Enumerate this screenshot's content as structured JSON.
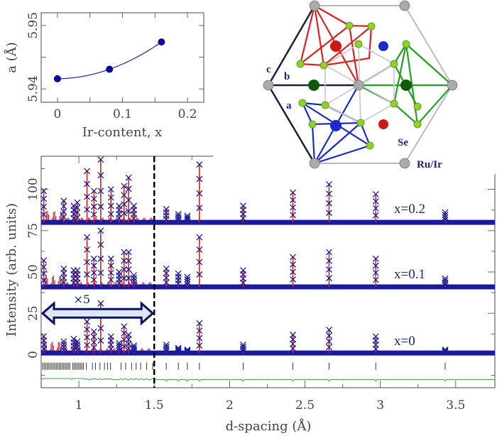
{
  "colors": {
    "observed": "#1a1a9e",
    "calculated": "#d32020",
    "difference": "#3aa83a",
    "reflections": "#333333",
    "inset_points": "#0a0a9a",
    "axes": "#666666"
  },
  "chart_data": [
    {
      "type": "scatter",
      "xlabel": "Ir-content, x",
      "ylabel": "a (Å)",
      "xlim": [
        -0.025,
        0.225
      ],
      "ylim": [
        5.9379,
        5.952
      ],
      "xticks": [
        "0",
        "0.1",
        "0.2"
      ],
      "xtick_values": [
        0,
        0.1,
        0.2
      ],
      "yticks": [
        "5.94",
        "5.95"
      ],
      "ytick_values": [
        5.94,
        5.95
      ],
      "minor_yticks": [
        5.945
      ],
      "minor_xticks": [
        0.05,
        0.15
      ],
      "points": [
        {
          "x": 0,
          "y": 5.9416
        },
        {
          "x": 0.08,
          "y": 5.9431
        },
        {
          "x": 0.16,
          "y": 5.9474
        }
      ],
      "fit_line": true
    },
    {
      "type": "line",
      "xlabel": "d-spacing (Å)",
      "ylabel": "Intensity (arb. units)",
      "xlim": [
        0.75,
        3.76
      ],
      "ylim": [
        -20,
        120
      ],
      "xticks": [
        "1",
        "1.5",
        "2",
        "2.5",
        "3",
        "3.5"
      ],
      "xtick_values": [
        1,
        1.5,
        2,
        2.5,
        3,
        3.5
      ],
      "yticks": [
        "0",
        "25",
        "50",
        "75",
        "100"
      ],
      "ytick_values": [
        0,
        25,
        50,
        75,
        100
      ],
      "divider_d": 1.5,
      "scale_annotation": {
        "label": "×5",
        "from": 0.75,
        "to": 1.5,
        "y": 25
      },
      "reflection_ticks_y": -7,
      "difference_offset": -15,
      "reflections": [
        0.76,
        0.77,
        0.78,
        0.79,
        0.8,
        0.81,
        0.82,
        0.83,
        0.84,
        0.85,
        0.86,
        0.87,
        0.88,
        0.89,
        0.9,
        0.91,
        0.92,
        0.93,
        0.94,
        0.96,
        0.97,
        0.98,
        0.99,
        1.0,
        1.01,
        1.02,
        1.03,
        1.05,
        1.09,
        1.11,
        1.14,
        1.17,
        1.19,
        1.21,
        1.28,
        1.31,
        1.35,
        1.38,
        1.41,
        1.45,
        1.49,
        1.58,
        1.66,
        1.72,
        1.8,
        2.09,
        2.42,
        2.66,
        2.97,
        3.43
      ],
      "series": [
        {
          "name": "x=0.2",
          "baseline": 80,
          "peaks": [
            [
              0.767,
              99
            ],
            [
              0.9,
              93
            ],
            [
              0.966,
              90
            ],
            [
              0.99,
              92
            ],
            [
              1.054,
              111
            ],
            [
              1.1,
              99
            ],
            [
              1.145,
              118
            ],
            [
              1.213,
              100
            ],
            [
              1.267,
              90
            ],
            [
              1.3,
              102
            ],
            [
              1.33,
              107
            ],
            [
              1.365,
              90
            ],
            [
              1.58,
              88
            ],
            [
              1.66,
              85
            ],
            [
              1.72,
              84
            ],
            [
              1.8,
              115
            ],
            [
              2.09,
              90
            ],
            [
              2.42,
              98
            ],
            [
              2.66,
              103
            ],
            [
              2.97,
              97
            ],
            [
              3.43,
              86
            ]
          ]
        },
        {
          "name": "x=0.1",
          "baseline": 41,
          "peaks": [
            [
              0.767,
              57
            ],
            [
              0.9,
              52
            ],
            [
              0.966,
              51
            ],
            [
              0.99,
              51
            ],
            [
              1.054,
              71
            ],
            [
              1.1,
              58
            ],
            [
              1.145,
              75
            ],
            [
              1.213,
              58
            ],
            [
              1.267,
              50
            ],
            [
              1.3,
              62
            ],
            [
              1.33,
              62
            ],
            [
              1.365,
              48
            ],
            [
              1.58,
              52
            ],
            [
              1.66,
              49
            ],
            [
              1.72,
              47
            ],
            [
              1.8,
              71
            ],
            [
              2.09,
              51
            ],
            [
              2.42,
              59
            ],
            [
              2.66,
              62
            ],
            [
              2.97,
              58
            ],
            [
              3.43,
              46
            ]
          ]
        },
        {
          "name": "x=0",
          "baseline": 1,
          "peaks": [
            [
              0.767,
              11
            ],
            [
              0.9,
              8
            ],
            [
              0.966,
              9.5
            ],
            [
              0.99,
              8
            ],
            [
              1.054,
              20
            ],
            [
              1.1,
              14
            ],
            [
              1.145,
              31
            ],
            [
              1.213,
              11
            ],
            [
              1.267,
              7
            ],
            [
              1.3,
              17
            ],
            [
              1.33,
              12
            ],
            [
              1.365,
              5.5
            ],
            [
              1.58,
              6
            ],
            [
              1.66,
              4
            ],
            [
              1.72,
              3
            ],
            [
              1.8,
              19
            ],
            [
              2.09,
              6
            ],
            [
              2.42,
              12
            ],
            [
              2.66,
              15
            ],
            [
              2.97,
              11
            ],
            [
              3.43,
              3
            ]
          ]
        }
      ]
    }
  ],
  "structure": {
    "labels": {
      "a": "a",
      "b": "b",
      "c": "c",
      "se": "Se",
      "ru_ir": "Ru/Ir"
    }
  }
}
